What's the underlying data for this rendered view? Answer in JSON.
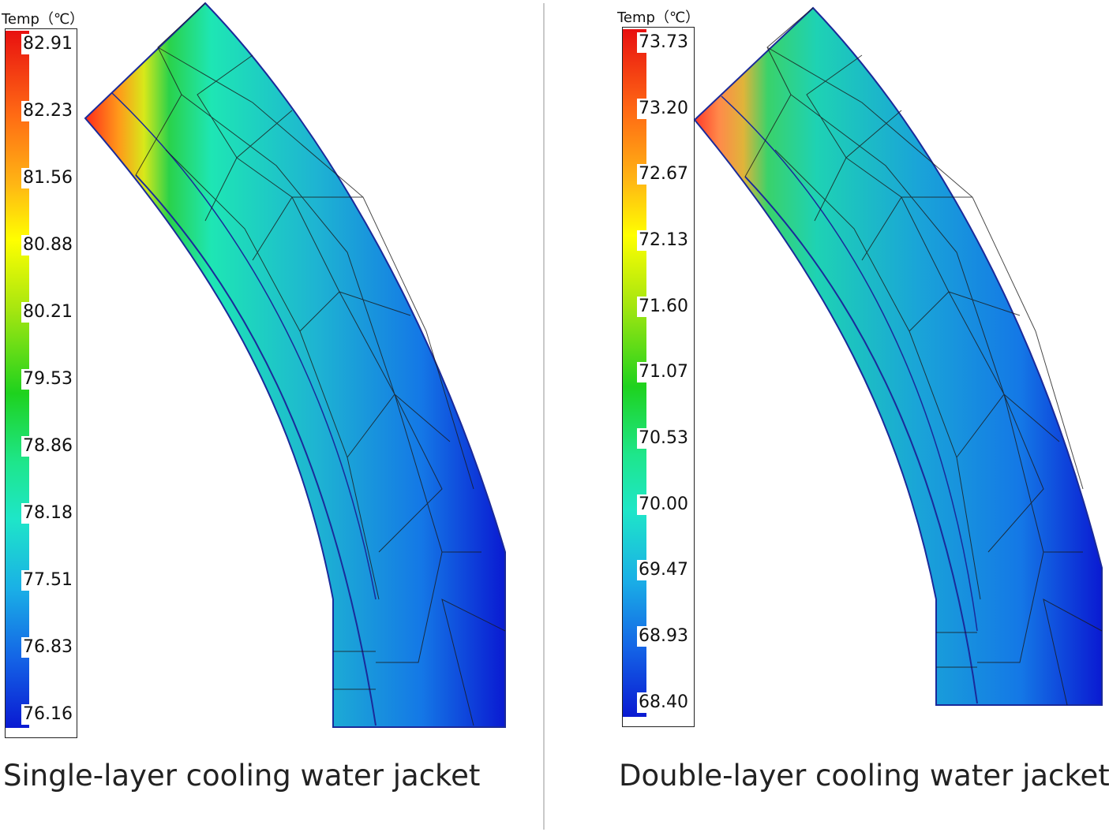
{
  "panels": [
    {
      "legend": {
        "title": "Temp（℃）",
        "ticks": [
          "82.91",
          "82.23",
          "81.56",
          "80.88",
          "80.21",
          "79.53",
          "78.86",
          "78.18",
          "77.51",
          "76.83",
          "76.16"
        ]
      },
      "caption": "Single-layer cooling water jacket"
    },
    {
      "legend": {
        "title": "Temp（℃）",
        "ticks": [
          "73.73",
          "73.20",
          "72.67",
          "72.13",
          "71.60",
          "71.07",
          "70.53",
          "70.00",
          "69.47",
          "68.93",
          "68.40"
        ]
      },
      "caption": "Double-layer cooling water jacket"
    }
  ],
  "colors": {
    "hot": "#ff2a1a",
    "warm": "#ff9a1a",
    "mid_yellow": "#ffff00",
    "mid_green": "#1ed21e",
    "cool_cyan": "#1ee6c8",
    "cold_blue": "#1464e6",
    "coldest": "#0a1ad2",
    "mesh_line": "#1a1a1a"
  }
}
